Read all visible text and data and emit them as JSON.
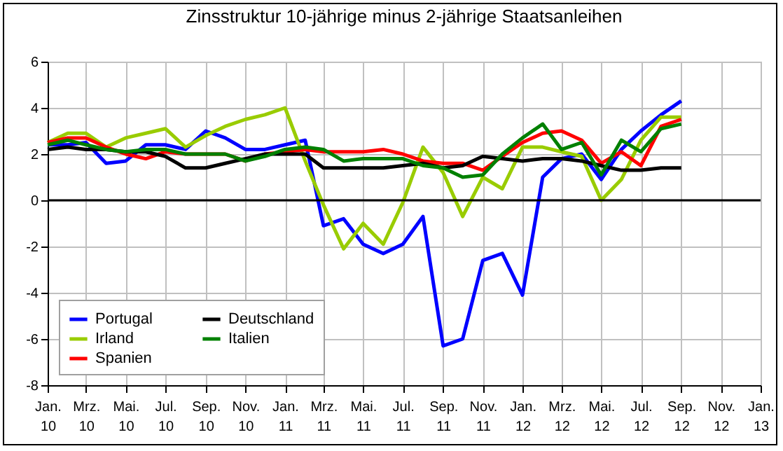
{
  "chart_data": {
    "type": "line",
    "title": "Zinsstruktur 10-jährige minus 2-jährige Staatsanleihen",
    "x": [
      "2010-01",
      "2010-02",
      "2010-03",
      "2010-04",
      "2010-05",
      "2010-06",
      "2010-07",
      "2010-08",
      "2010-09",
      "2010-10",
      "2010-11",
      "2010-12",
      "2011-01",
      "2011-02",
      "2011-03",
      "2011-04",
      "2011-05",
      "2011-06",
      "2011-07",
      "2011-08",
      "2011-09",
      "2011-10",
      "2011-11",
      "2011-12",
      "2012-01",
      "2012-02",
      "2012-03",
      "2012-04",
      "2012-05",
      "2012-06",
      "2012-07",
      "2012-08",
      "2012-09"
    ],
    "series": [
      {
        "name": "Portugal",
        "color": "#0000ff",
        "values": [
          2.4,
          2.4,
          2.5,
          1.6,
          1.7,
          2.4,
          2.4,
          2.2,
          3.0,
          2.7,
          2.2,
          2.2,
          2.4,
          2.6,
          -1.1,
          -0.8,
          -1.9,
          -2.3,
          -1.9,
          -0.7,
          -6.3,
          -6.0,
          -2.6,
          -2.3,
          -4.1,
          1.0,
          1.8,
          2.0,
          0.9,
          2.2,
          3.0,
          3.7,
          4.3
        ]
      },
      {
        "name": "Irland",
        "color": "#99cc00",
        "values": [
          2.5,
          2.9,
          2.9,
          2.3,
          2.7,
          2.9,
          3.1,
          2.3,
          2.8,
          3.2,
          3.5,
          3.7,
          4.0,
          1.7,
          -0.2,
          -2.1,
          -1.0,
          -1.9,
          -0.1,
          2.3,
          1.2,
          -0.7,
          1.0,
          0.5,
          2.3,
          2.3,
          2.1,
          1.9,
          0.0,
          0.9,
          2.6,
          3.6,
          3.6
        ]
      },
      {
        "name": "Spanien",
        "color": "#ff0000",
        "values": [
          2.5,
          2.7,
          2.7,
          2.3,
          2.0,
          1.8,
          2.1,
          2.0,
          2.0,
          2.0,
          1.7,
          2.0,
          2.1,
          2.2,
          2.1,
          2.1,
          2.1,
          2.2,
          2.0,
          1.7,
          1.6,
          1.6,
          1.3,
          1.9,
          2.5,
          2.9,
          3.0,
          2.6,
          1.6,
          2.1,
          1.5,
          3.2,
          3.5
        ]
      },
      {
        "name": "Deutschland",
        "color": "#000000",
        "values": [
          2.2,
          2.3,
          2.2,
          2.2,
          2.1,
          2.1,
          1.9,
          1.4,
          1.4,
          1.6,
          1.8,
          2.0,
          2.0,
          2.0,
          1.4,
          1.4,
          1.4,
          1.4,
          1.5,
          1.6,
          1.4,
          1.5,
          1.9,
          1.8,
          1.7,
          1.8,
          1.8,
          1.7,
          1.5,
          1.3,
          1.3,
          1.4,
          1.4
        ]
      },
      {
        "name": "Italien",
        "color": "#008000",
        "values": [
          2.4,
          2.6,
          2.4,
          2.2,
          2.1,
          2.2,
          2.2,
          2.0,
          2.0,
          2.0,
          1.7,
          1.9,
          2.2,
          2.3,
          2.2,
          1.7,
          1.8,
          1.8,
          1.8,
          1.5,
          1.4,
          1.0,
          1.1,
          2.0,
          2.7,
          3.3,
          2.2,
          2.5,
          1.1,
          2.6,
          2.1,
          3.1,
          3.3
        ]
      }
    ],
    "xlim": [
      "2010-01",
      "2013-01"
    ],
    "xticks": [
      {
        "value": "2010-01",
        "label": "Jan. 10"
      },
      {
        "value": "2010-03",
        "label": "Mrz. 10"
      },
      {
        "value": "2010-05",
        "label": "Mai. 10"
      },
      {
        "value": "2010-07",
        "label": "Jul. 10"
      },
      {
        "value": "2010-09",
        "label": "Sep. 10"
      },
      {
        "value": "2010-11",
        "label": "Nov. 10"
      },
      {
        "value": "2011-01",
        "label": "Jan. 11"
      },
      {
        "value": "2011-03",
        "label": "Mrz. 11"
      },
      {
        "value": "2011-05",
        "label": "Mai. 11"
      },
      {
        "value": "2011-07",
        "label": "Jul. 11"
      },
      {
        "value": "2011-09",
        "label": "Sep. 11"
      },
      {
        "value": "2011-11",
        "label": "Nov. 11"
      },
      {
        "value": "2012-01",
        "label": "Jan. 12"
      },
      {
        "value": "2012-03",
        "label": "Mrz. 12"
      },
      {
        "value": "2012-05",
        "label": "Mai. 12"
      },
      {
        "value": "2012-07",
        "label": "Jul. 12"
      },
      {
        "value": "2012-09",
        "label": "Sep. 12"
      },
      {
        "value": "2012-11",
        "label": "Nov. 12"
      },
      {
        "value": "2013-01",
        "label": "Jan. 13"
      }
    ],
    "ylim": [
      -8,
      6
    ],
    "yticks": [
      -8,
      -6,
      -4,
      -2,
      0,
      2,
      4,
      6
    ],
    "ref_lines": [
      {
        "axis": "y",
        "value": 0,
        "color": "#000000"
      }
    ],
    "grid": true,
    "legend": "bottom left",
    "line_style": "solid"
  }
}
